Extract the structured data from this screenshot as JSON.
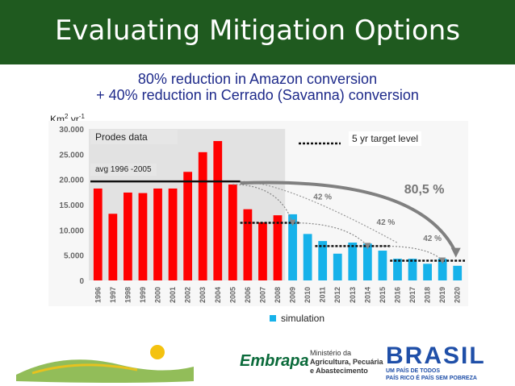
{
  "slide": {
    "title": "Evaluating Mitigation Options",
    "subtitle_line1": "80% reduction in Amazon conversion",
    "subtitle_line2": "+ 40% reduction in Cerrado (Savanna) conversion",
    "unit_base": "Km",
    "unit_exp1": "2",
    "unit_mid": " yr",
    "unit_exp2": "-1"
  },
  "labels": {
    "prodes": "Prodes data",
    "avg": "avg 1996 -2005",
    "target": "5 yr target level",
    "simulation": "simulation"
  },
  "footer": {
    "embrapa": "Embrapa",
    "ministry_l1": "Ministério da",
    "ministry_l2": "Agricultura, Pecuária",
    "ministry_l3": "e Abastecimento",
    "brasil": "BRASIL",
    "brasil_tag1": "UM PAÍS DE TODOS",
    "brasil_tag2": "PAÍS RICO É PAÍS SEM POBREZA"
  },
  "colors": {
    "header": "#1f5a1f",
    "observed": "#ff0000",
    "simulation": "#16b2ea",
    "subtitle": "#1e2a8a"
  },
  "chart_data": {
    "type": "bar",
    "categories": [
      "1996",
      "1997",
      "1998",
      "1999",
      "2000",
      "2001",
      "2002",
      "2003",
      "2004",
      "2005",
      "2006",
      "2007",
      "2008",
      "2009",
      "2010",
      "2011",
      "2012",
      "2013",
      "2014",
      "2015",
      "2016",
      "2017",
      "2018",
      "2019",
      "2020"
    ],
    "series": [
      {
        "values": [
          18200,
          13200,
          17400,
          17300,
          18200,
          18200,
          21500,
          25400,
          27600,
          19000,
          14100,
          11500,
          12900,
          null,
          null,
          null,
          null,
          null,
          null,
          null,
          null,
          null,
          null,
          null,
          null
        ]
      },
      {
        "name": "simulation",
        "values": [
          null,
          null,
          null,
          null,
          null,
          null,
          null,
          null,
          null,
          null,
          null,
          null,
          null,
          13100,
          9200,
          7800,
          5300,
          7500,
          7300,
          5900,
          4300,
          4300,
          3300,
          4300,
          2900
        ]
      }
    ],
    "yticks": [
      "0",
      "5.000",
      "10.000",
      "15.000",
      "20.000",
      "25.000",
      "30.000"
    ],
    "ylim": [
      0,
      30000
    ],
    "avg_1996_2005": 19600,
    "target_levels": [
      {
        "from": "2006",
        "to": "2009",
        "value": 11400
      },
      {
        "from": "2011",
        "to": "2015",
        "value": 6800
      },
      {
        "from": "2016",
        "to": "2020",
        "value": 3900
      }
    ],
    "annotations": [
      "42 %",
      "42 %",
      "42 %",
      "80,5 %"
    ],
    "grid": false,
    "legend": "bottom"
  }
}
